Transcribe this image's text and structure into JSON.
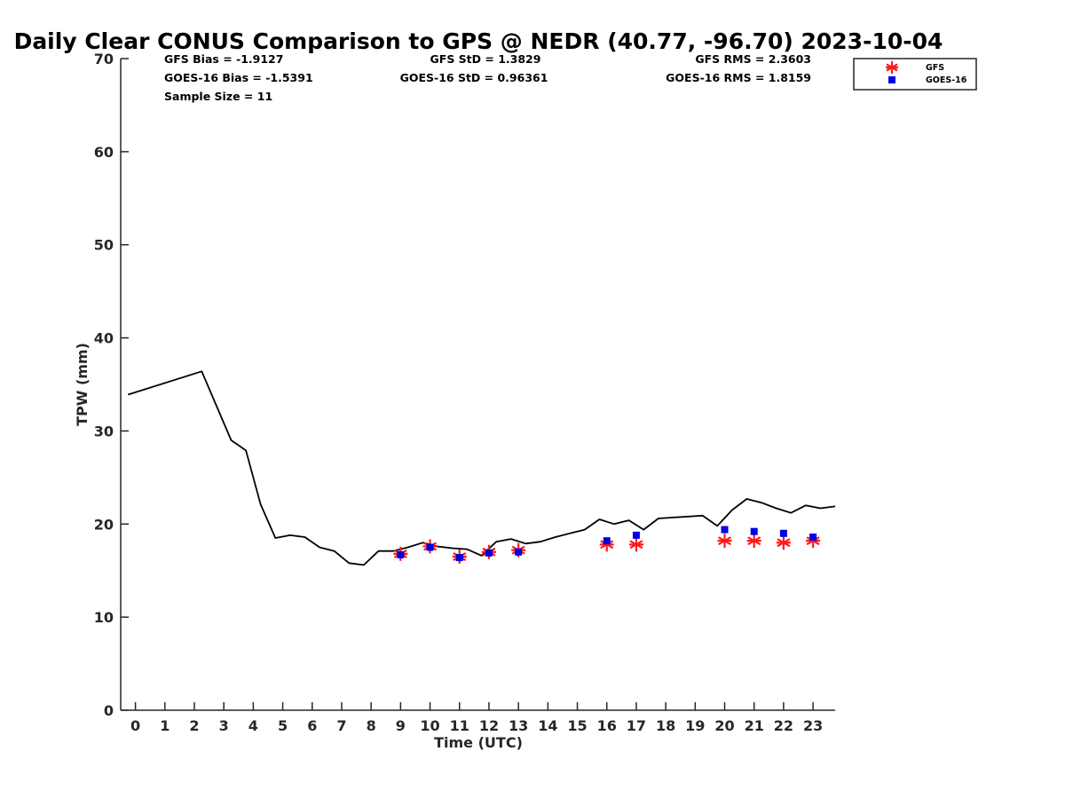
{
  "chart_data": {
    "type": "line",
    "title": "Daily Clear CONUS Comparison to GPS @ NEDR (40.77, -96.70) 2023-10-04",
    "xlabel": "Time (UTC)",
    "ylabel": "TPW (mm)",
    "xlim": [
      -0.5,
      23.75
    ],
    "ylim": [
      0,
      70
    ],
    "x_ticks": [
      0,
      1,
      2,
      3,
      4,
      5,
      6,
      7,
      8,
      9,
      10,
      11,
      12,
      13,
      14,
      15,
      16,
      17,
      18,
      19,
      20,
      21,
      22,
      23
    ],
    "x_tick_labels": [
      "0",
      "1",
      "2",
      "3",
      "4",
      "5",
      "6",
      "7",
      "8",
      "9",
      "10",
      "11",
      "12",
      "13",
      "14",
      "15",
      "16",
      "17",
      "18",
      "19",
      "20",
      "21",
      "22",
      "23"
    ],
    "y_ticks": [
      0,
      10,
      20,
      30,
      40,
      50,
      60,
      70
    ],
    "y_tick_labels": [
      "0",
      "10",
      "20",
      "30",
      "40",
      "50",
      "60",
      "70"
    ],
    "grid": false,
    "legend_position": "top-right, outside plot",
    "colors": {
      "gps_line": "#000000",
      "gfs": "#ff1a1a",
      "goes": "#0000e6"
    },
    "stats": {
      "gfs_bias": "GFS Bias = -1.9127",
      "gfs_std": "GFS StD = 1.3829",
      "gfs_rms": "GFS RMS = 2.3603",
      "goes_bias": "GOES-16 Bias = -1.5391",
      "goes_std": "GOES-16 StD = 0.96361",
      "goes_rms": "GOES-16 RMS = 1.8159",
      "sample_size": "Sample Size = 11"
    },
    "series": [
      {
        "name": "GPS",
        "kind": "line",
        "x": [
          -0.25,
          2.25,
          3.25,
          3.75,
          4.25,
          4.75,
          5.25,
          5.75,
          6.25,
          6.75,
          7.25,
          7.75,
          8.25,
          8.75,
          9.25,
          9.75,
          10.25,
          10.75,
          11.25,
          11.75,
          12.25,
          12.75,
          13.25,
          13.75,
          14.25,
          14.75,
          15.25,
          15.75,
          16.25,
          16.75,
          17.25,
          17.75,
          18.25,
          18.75,
          19.25,
          19.75,
          20.25,
          20.75,
          21.25,
          21.75,
          22.25,
          22.75,
          23.25,
          23.75
        ],
        "y": [
          33.9,
          36.4,
          29.0,
          27.9,
          22.1,
          18.5,
          18.8,
          18.6,
          17.5,
          17.1,
          15.8,
          15.6,
          17.1,
          17.1,
          17.5,
          18.0,
          17.6,
          17.4,
          17.3,
          16.6,
          18.1,
          18.4,
          17.9,
          18.1,
          18.6,
          19.0,
          19.4,
          20.5,
          20.0,
          20.4,
          19.4,
          20.6,
          20.7,
          20.8,
          20.9,
          19.8,
          21.5,
          22.7,
          22.3,
          21.7,
          21.2,
          22.0,
          21.7,
          21.9
        ]
      },
      {
        "name": "GFS",
        "kind": "scatter",
        "marker": "asterisk",
        "x": [
          9,
          10,
          11,
          12,
          13,
          16,
          17,
          20,
          21,
          22,
          23
        ],
        "y": [
          16.8,
          17.6,
          16.5,
          17.0,
          17.2,
          17.8,
          17.8,
          18.2,
          18.2,
          18.0,
          18.2
        ]
      },
      {
        "name": "GOES-16",
        "kind": "scatter",
        "marker": "square",
        "x": [
          9,
          10,
          11,
          12,
          13,
          16,
          17,
          20,
          21,
          22,
          23
        ],
        "y": [
          16.7,
          17.5,
          16.4,
          16.9,
          17.0,
          18.2,
          18.8,
          19.4,
          19.2,
          19.0,
          18.6
        ]
      }
    ],
    "legend": [
      {
        "label": "GFS",
        "marker": "asterisk"
      },
      {
        "label": "GOES-16",
        "marker": "square"
      }
    ]
  }
}
